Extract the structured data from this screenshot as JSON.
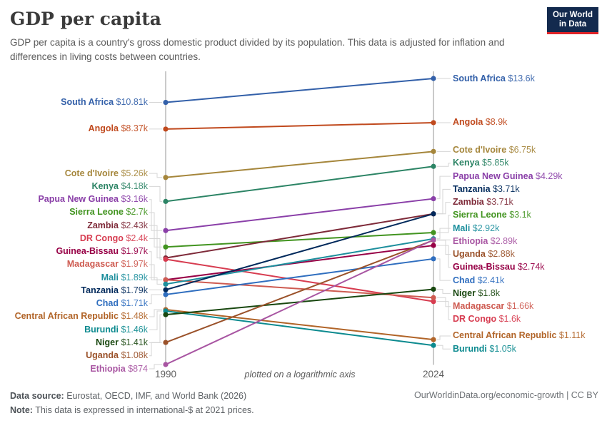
{
  "header": {
    "title": "GDP per capita",
    "subtitle": "GDP per capita is a country's gross domestic product divided by its population. This data is adjusted for inflation and differences in living costs between countries.",
    "logo": {
      "line1": "Our World",
      "line2": "in Data",
      "bg": "#132a4e",
      "bar": "#e02428"
    }
  },
  "chart_data": {
    "type": "line",
    "subtype": "slope",
    "scale": "log",
    "x": [
      1990,
      2024
    ],
    "x_labels": [
      "1990",
      "2024"
    ],
    "axis_note": "plotted on a logarithmic axis",
    "value_range": [
      874,
      13600
    ],
    "unit": "international-$ at 2021 prices",
    "series": [
      {
        "name": "South Africa",
        "values": [
          10810,
          13600
        ],
        "labels": [
          "$10.81k",
          "$13.6k"
        ],
        "color": "#3360a9"
      },
      {
        "name": "Angola",
        "values": [
          8370,
          8900
        ],
        "labels": [
          "$8.37k",
          "$8.9k"
        ],
        "color": "#c0491d"
      },
      {
        "name": "Cote d'Ivoire",
        "values": [
          5260,
          6750
        ],
        "labels": [
          "$5.26k",
          "$6.75k"
        ],
        "color": "#a5863b"
      },
      {
        "name": "Kenya",
        "values": [
          4180,
          5850
        ],
        "labels": [
          "$4.18k",
          "$5.85k"
        ],
        "color": "#2c8465"
      },
      {
        "name": "Papua New Guinea",
        "values": [
          3160,
          4290
        ],
        "labels": [
          "$3.16k",
          "$4.29k"
        ],
        "color": "#8a3fa8"
      },
      {
        "name": "Sierra Leone",
        "values": [
          2700,
          3100
        ],
        "labels": [
          "$2.7k",
          "$3.1k"
        ],
        "color": "#429420"
      },
      {
        "name": "Zambia",
        "values": [
          2430,
          3710
        ],
        "labels": [
          "$2.43k",
          "$3.71k"
        ],
        "color": "#7e2a39"
      },
      {
        "name": "DR Congo",
        "values": [
          2400,
          1600
        ],
        "labels": [
          "$2.4k",
          "$1.6k"
        ],
        "color": "#d73c50"
      },
      {
        "name": "Guinea-Bissau",
        "values": [
          1970,
          2740
        ],
        "labels": [
          "$1.97k",
          "$2.74k"
        ],
        "color": "#970046"
      },
      {
        "name": "Madagascar",
        "values": [
          1970,
          1660
        ],
        "labels": [
          "$1.97k",
          "$1.66k"
        ],
        "color": "#ce5b51"
      },
      {
        "name": "Mali",
        "values": [
          1890,
          2920
        ],
        "labels": [
          "$1.89k",
          "$2.92k"
        ],
        "color": "#1d8f9d"
      },
      {
        "name": "Tanzania",
        "values": [
          1790,
          3710
        ],
        "labels": [
          "$1.79k",
          "$3.71k"
        ],
        "color": "#00295b"
      },
      {
        "name": "Chad",
        "values": [
          1710,
          2410
        ],
        "labels": [
          "$1.71k",
          "$2.41k"
        ],
        "color": "#2f6ebf"
      },
      {
        "name": "Central African Republic",
        "values": [
          1480,
          1110
        ],
        "labels": [
          "$1.48k",
          "$1.11k"
        ],
        "color": "#b16428"
      },
      {
        "name": "Burundi",
        "values": [
          1460,
          1050
        ],
        "labels": [
          "$1.46k",
          "$1.05k"
        ],
        "color": "#0c8a8f"
      },
      {
        "name": "Niger",
        "values": [
          1410,
          1800
        ],
        "labels": [
          "$1.41k",
          "$1.8k"
        ],
        "color": "#18470f"
      },
      {
        "name": "Uganda",
        "values": [
          1080,
          2880
        ],
        "labels": [
          "$1.08k",
          "$2.88k"
        ],
        "color": "#9a5129"
      },
      {
        "name": "Ethiopia",
        "values": [
          874,
          2890
        ],
        "labels": [
          "$874",
          "$2.89k"
        ],
        "color": "#a855a2"
      }
    ]
  },
  "footer": {
    "source_label": "Data source:",
    "source_text": " Eurostat, OECD, IMF, and World Bank (2026)",
    "note_label": "Note:",
    "note_text": " This data is expressed in international-$ at 2021 prices.",
    "right": "OurWorldinData.org/economic-growth | CC BY"
  }
}
